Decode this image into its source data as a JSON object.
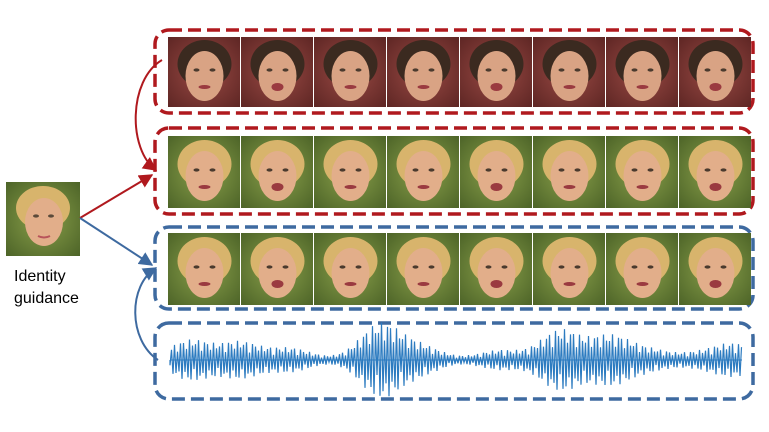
{
  "identity": {
    "caption_line1": "Identity",
    "caption_line2": "guidance"
  },
  "rows": [
    {
      "name": "reference-video-row",
      "group": "red",
      "frames": 8,
      "subject": "dark-haired-girl"
    },
    {
      "name": "target-video-row-top",
      "group": "red",
      "frames": 8,
      "subject": "blonde-woman"
    },
    {
      "name": "target-video-row-bottom",
      "group": "blue",
      "frames": 8,
      "subject": "blonde-woman"
    },
    {
      "name": "audio-waveform-row",
      "group": "blue",
      "frames": 0,
      "subject": "waveform"
    }
  ],
  "colors": {
    "red": "#b0191e",
    "blue": "#3e6aa0",
    "waveform": "#2c7bc0",
    "skin_blonde": "#e2ae8a",
    "hair_blonde": "#d8b46c",
    "bg_green": "#6f8a3c",
    "skin_dark": "#d9a384",
    "hair_dark": "#3b2a20",
    "bg_red": "#8c2f2e"
  }
}
